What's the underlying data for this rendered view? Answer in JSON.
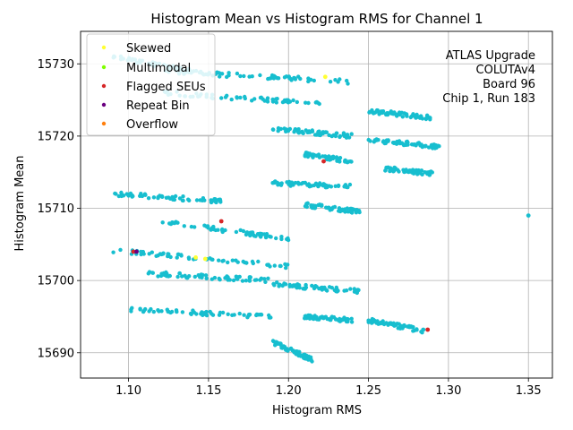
{
  "chart_data": {
    "type": "scatter",
    "title": "Histogram Mean vs Histogram RMS for Channel 1",
    "xlabel": "Histogram RMS",
    "ylabel": "Histogram Mean",
    "xlim": [
      1.07,
      1.365
    ],
    "ylim": [
      15686.5,
      15734.5
    ],
    "xticks": [
      "1.10",
      "1.15",
      "1.20",
      "1.25",
      "1.30",
      "1.35"
    ],
    "xtick_values": [
      1.1,
      1.15,
      1.2,
      1.25,
      1.3,
      1.35
    ],
    "yticks": [
      "15690",
      "15700",
      "15710",
      "15720",
      "15730"
    ],
    "ytick_values": [
      15690,
      15700,
      15710,
      15720,
      15730
    ],
    "grid": true,
    "legend_position": "top-left",
    "annotation": [
      "ATLAS Upgrade",
      "COLUTAv4",
      "Board 96",
      "Chip 1, Run 183"
    ],
    "colors": {
      "main": "#17becf",
      "skewed": "#ffff33",
      "multimodal": "#7fff00",
      "flagged": "#d62728",
      "repeat": "#6a0080",
      "overflow": "#ff7f0e"
    },
    "legend": [
      {
        "name": "Skewed",
        "color": "#ffff33"
      },
      {
        "name": "Multimodal",
        "color": "#7fff00"
      },
      {
        "name": "Flagged SEUs",
        "color": "#d62728"
      },
      {
        "name": "Repeat Bin",
        "color": "#6a0080"
      },
      {
        "name": "Overflow",
        "color": "#ff7f0e"
      }
    ],
    "main_bands": [
      {
        "x": [
          1.09,
          1.15
        ],
        "y": [
          15731.0,
          15728.5
        ]
      },
      {
        "x": [
          1.12,
          1.24
        ],
        "y": [
          15729.0,
          15727.5
        ]
      },
      {
        "x": [
          1.12,
          1.22
        ],
        "y": [
          15726.0,
          15724.5
        ]
      },
      {
        "x": [
          1.25,
          1.29
        ],
        "y": [
          15723.5,
          15722.5
        ]
      },
      {
        "x": [
          1.19,
          1.24
        ],
        "y": [
          15721.0,
          15720.0
        ]
      },
      {
        "x": [
          1.25,
          1.295
        ],
        "y": [
          15719.5,
          15718.5
        ]
      },
      {
        "x": [
          1.21,
          1.24
        ],
        "y": [
          15717.5,
          15716.5
        ]
      },
      {
        "x": [
          1.26,
          1.29
        ],
        "y": [
          15715.5,
          15714.8
        ]
      },
      {
        "x": [
          1.19,
          1.24
        ],
        "y": [
          15713.5,
          15713.0
        ]
      },
      {
        "x": [
          1.09,
          1.16
        ],
        "y": [
          15712.0,
          15711.0
        ]
      },
      {
        "x": [
          1.21,
          1.245
        ],
        "y": [
          15710.5,
          15709.5
        ]
      },
      {
        "x": [
          1.12,
          1.2
        ],
        "y": [
          15708.2,
          15705.8
        ]
      },
      {
        "x": [
          1.09,
          1.2
        ],
        "y": [
          15704.2,
          15702.0
        ]
      },
      {
        "x": [
          1.11,
          1.19
        ],
        "y": [
          15701.0,
          15700.0
        ]
      },
      {
        "x": [
          1.19,
          1.245
        ],
        "y": [
          15699.5,
          15698.5
        ]
      },
      {
        "x": [
          1.1,
          1.19
        ],
        "y": [
          15696.0,
          15695.0
        ]
      },
      {
        "x": [
          1.21,
          1.24
        ],
        "y": [
          15695.0,
          15694.5
        ]
      },
      {
        "x": [
          1.25,
          1.285
        ],
        "y": [
          15694.5,
          15693.0
        ]
      },
      {
        "x": [
          1.19,
          1.215
        ],
        "y": [
          15691.5,
          15689.0
        ]
      }
    ],
    "special_points": [
      {
        "category": "Skewed",
        "x": 1.223,
        "y": 15728.2
      },
      {
        "category": "Skewed",
        "x": 1.142,
        "y": 15703.2
      },
      {
        "category": "Skewed",
        "x": 1.148,
        "y": 15703.0
      },
      {
        "category": "Flagged SEUs",
        "x": 1.222,
        "y": 15716.5
      },
      {
        "category": "Flagged SEUs",
        "x": 1.158,
        "y": 15708.2
      },
      {
        "category": "Flagged SEUs",
        "x": 1.103,
        "y": 15704.0
      },
      {
        "category": "Flagged SEUs",
        "x": 1.287,
        "y": 15693.2
      },
      {
        "category": "Repeat Bin",
        "x": 1.105,
        "y": 15704.0
      },
      {
        "category": "Main",
        "x": 1.35,
        "y": 15709.0
      }
    ]
  }
}
